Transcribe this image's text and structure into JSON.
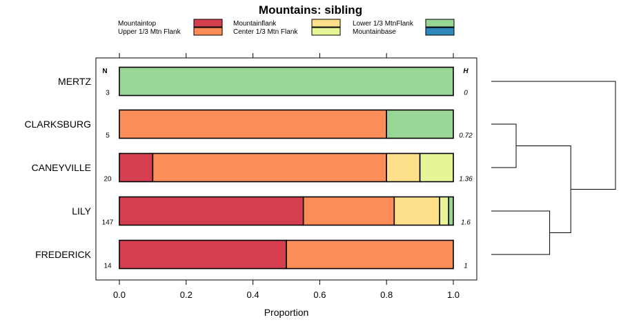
{
  "chart_data": {
    "type": "bar",
    "orientation": "horizontal",
    "stacked": true,
    "title": "Mountains: sibling",
    "xlabel": "Proportion",
    "ylabel": "",
    "xlim": [
      0,
      1
    ],
    "x_ticks": [
      "0.0",
      "0.2",
      "0.4",
      "0.6",
      "0.8",
      "1.0"
    ],
    "grid": false,
    "legend_position": "top",
    "n_header": "N",
    "h_header": "H",
    "legend": [
      {
        "label": "Mountaintop",
        "color": "#d53e4f"
      },
      {
        "label": "Mountainflank",
        "color": "#fee08b"
      },
      {
        "label": "Lower 1/3 MtnFlank",
        "color": "#99d594"
      },
      {
        "label": "Upper 1/3 Mtn Flank",
        "color": "#fc8d59"
      },
      {
        "label": "Center 1/3 Mtn Flank",
        "color": "#e6f598"
      },
      {
        "label": "Mountainbase",
        "color": "#3288bd"
      }
    ],
    "series_order": [
      "Mountaintop",
      "Upper 1/3 Mtn Flank",
      "Mountainflank",
      "Center 1/3 Mtn Flank",
      "Lower 1/3 MtnFlank",
      "Mountainbase"
    ],
    "categories": [
      {
        "name": "MERTZ",
        "n": "3",
        "h": "0",
        "values": {
          "Mountaintop": 0,
          "Upper 1/3 Mtn Flank": 0,
          "Mountainflank": 0,
          "Center 1/3 Mtn Flank": 0,
          "Lower 1/3 MtnFlank": 1.0,
          "Mountainbase": 0
        }
      },
      {
        "name": "CLARKSBURG",
        "n": "5",
        "h": "0.72",
        "values": {
          "Mountaintop": 0,
          "Upper 1/3 Mtn Flank": 0.8,
          "Mountainflank": 0,
          "Center 1/3 Mtn Flank": 0,
          "Lower 1/3 MtnFlank": 0.2,
          "Mountainbase": 0
        }
      },
      {
        "name": "CANEYVILLE",
        "n": "20",
        "h": "1.36",
        "values": {
          "Mountaintop": 0.1,
          "Upper 1/3 Mtn Flank": 0.7,
          "Mountainflank": 0.1,
          "Center 1/3 Mtn Flank": 0.1,
          "Lower 1/3 MtnFlank": 0,
          "Mountainbase": 0
        }
      },
      {
        "name": "LILY",
        "n": "147",
        "h": "1.6",
        "values": {
          "Mountaintop": 0.551,
          "Upper 1/3 Mtn Flank": 0.272,
          "Mountainflank": 0.136,
          "Center 1/3 Mtn Flank": 0.027,
          "Lower 1/3 MtnFlank": 0.014,
          "Mountainbase": 0
        }
      },
      {
        "name": "FREDERICK",
        "n": "14",
        "h": "1",
        "values": {
          "Mountaintop": 0.5,
          "Upper 1/3 Mtn Flank": 0.5,
          "Mountainflank": 0,
          "Center 1/3 Mtn Flank": 0,
          "Lower 1/3 MtnFlank": 0,
          "Mountainbase": 0
        }
      }
    ],
    "dendrogram": {
      "description": "hierarchical clustering of sites",
      "merges": [
        {
          "id": "c1",
          "left": "CLARKSBURG",
          "right": "CANEYVILLE",
          "height": 0.2
        },
        {
          "id": "c2",
          "left": "LILY",
          "right": "FREDERICK",
          "height": 0.47
        },
        {
          "id": "c3",
          "left": "c1",
          "right": "c2",
          "height": 0.64
        },
        {
          "id": "c4",
          "left": "MERTZ",
          "right": "c3",
          "height": 1.0
        }
      ]
    }
  }
}
